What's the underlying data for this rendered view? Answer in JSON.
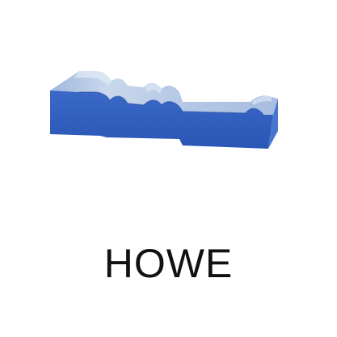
{
  "product": {
    "name": "HOWE",
    "image_icon": "molding-profile-icon"
  },
  "colors": {
    "front_face": "#2f5fc0",
    "top_light": "#d8e4f2",
    "top_mid": "#b3c8e4",
    "top_shadow": "#8fa9d2",
    "end_face": "#4a78cc",
    "label": "#111111"
  }
}
